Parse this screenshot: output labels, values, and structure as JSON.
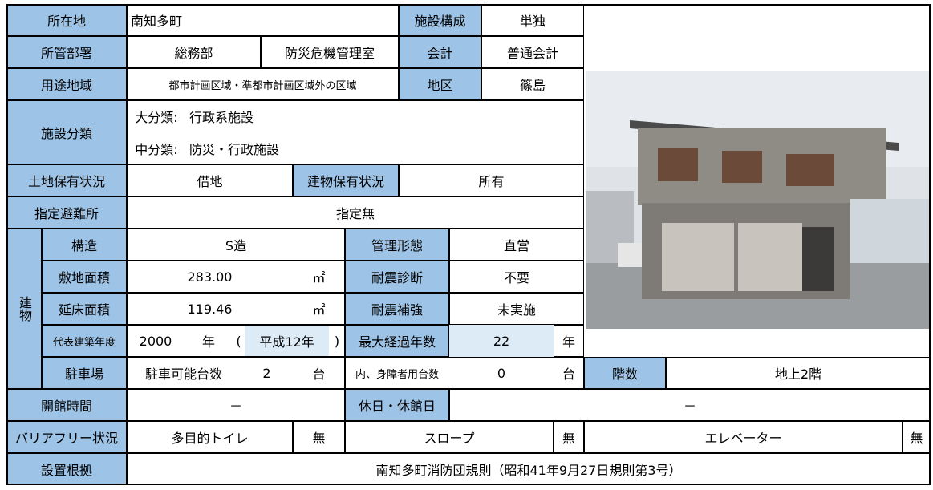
{
  "rows": [
    [
      "所在地",
      "南知多町",
      "施設構成",
      "単独"
    ],
    [
      "所管部署",
      "総務部",
      "防災危機管理室",
      "会計",
      "普通会計"
    ],
    [
      "用途地域",
      "都市計画区域・準都市計画区域外の区域",
      "地区",
      "篠島"
    ],
    [
      "施設分類",
      "大分類:",
      "行政系施設"
    ],
    [
      "中分類:",
      "防災・行政施設"
    ],
    [
      "土地保有状況",
      "借地",
      "建物保有状況",
      "所有"
    ],
    [
      "指定避難所",
      "指定無"
    ],
    [
      "建物",
      "構造",
      "S造",
      "管理形態",
      "直営"
    ],
    [
      "敷地面積",
      "283.00",
      "㎡",
      "耐震診断",
      "不要"
    ],
    [
      "延床面積",
      "119.46",
      "㎡",
      "耐震補強",
      "未実施"
    ],
    [
      "代表建築年度",
      "2000",
      "年",
      "(",
      "平成12年",
      ")",
      "最大経過年数",
      "22",
      "年"
    ],
    [
      "駐車場",
      "駐車可能台数",
      "2",
      "台",
      "内、身障者用台数",
      "0",
      "台",
      "階数",
      "地上2階"
    ],
    [
      "開館時間",
      "－",
      "休日・休館日",
      "－"
    ],
    [
      "バリアフリー状況",
      "多目的トイレ",
      "無",
      "スロープ",
      "無",
      "エレベーター",
      "無"
    ],
    [
      "設置根拠",
      "南知多町消防団規則（昭和41年9月27日規則第3号）"
    ]
  ]
}
